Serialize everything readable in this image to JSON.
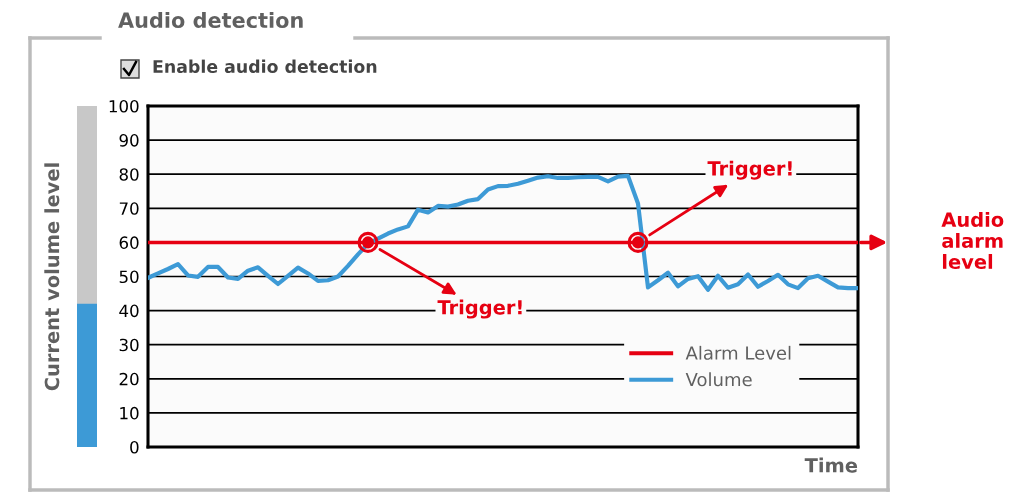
{
  "chart_data": [
    {
      "type": "line",
      "title": "Audio detection",
      "subtitle": "Enable audio detection",
      "xlabel": "Time",
      "categories": [
        null,
        null,
        null,
        null,
        null,
        null,
        null,
        null,
        null,
        null,
        null,
        null,
        null,
        null,
        null,
        null,
        null,
        null,
        null,
        null,
        null,
        null,
        null,
        null,
        null,
        null,
        null,
        null,
        null,
        null,
        null,
        null,
        null,
        null,
        null,
        null,
        null,
        null,
        null,
        null,
        null,
        null,
        null,
        null,
        null,
        null,
        null,
        null,
        null,
        null,
        null,
        null,
        null,
        null,
        null,
        null,
        null,
        null,
        null,
        null,
        null,
        null,
        null,
        null,
        null,
        null,
        null,
        null,
        null,
        null,
        null,
        null
      ],
      "series": [
        {
          "name": "Alarm Level",
          "color": "#e60012",
          "values": [
            60,
            60,
            60,
            60,
            60,
            60,
            60,
            60,
            60,
            60,
            60,
            60,
            60,
            60,
            60,
            60,
            60,
            60,
            60,
            60,
            60,
            60,
            60,
            60,
            60,
            60,
            60,
            60,
            60,
            60,
            60,
            60,
            60,
            60,
            60,
            60,
            60,
            60,
            60,
            60,
            60,
            60,
            60,
            60,
            60,
            60,
            60,
            60,
            60,
            60,
            60,
            60,
            60,
            60,
            60,
            60,
            60,
            60,
            60,
            60,
            60,
            60,
            60,
            60,
            60,
            60,
            60,
            60,
            60,
            60,
            60,
            60
          ]
        },
        {
          "name": "Volume",
          "color": "#3d9ad6",
          "values": [
            49.6,
            50.9,
            52.2,
            53.6,
            50.3,
            49.9,
            52.8,
            52.8,
            49.7,
            49.3,
            51.7,
            52.7,
            50.2,
            47.8,
            50.2,
            52.6,
            50.9,
            48.7,
            48.9,
            50.0,
            53.1,
            56.5,
            59.6,
            61.1,
            62.6,
            63.8,
            64.7,
            69.6,
            68.8,
            70.7,
            70.5,
            71.1,
            72.2,
            72.7,
            75.5,
            76.5,
            76.6,
            77.2,
            78.1,
            79.0,
            79.4,
            78.9,
            78.9,
            79.1,
            79.2,
            79.2,
            77.9,
            79.3,
            79.5,
            71.4,
            46.8,
            48.9,
            51.1,
            47.1,
            49.3,
            50.1,
            46.1,
            50.2,
            46.7,
            47.7,
            50.6,
            47.0,
            48.7,
            50.5,
            47.7,
            46.6,
            49.5,
            50.2,
            48.5,
            46.8,
            46.6,
            46.6
          ]
        }
      ],
      "annotations": [
        "Trigger!",
        "Trigger!",
        "Audio alarm level"
      ],
      "ylim": [
        0,
        100
      ],
      "yticks": [
        0,
        10,
        20,
        30,
        40,
        50,
        60,
        70,
        80,
        90,
        100
      ],
      "grid": "y",
      "legend": "bottom right",
      "marker": "none",
      "line_style": "solid"
    },
    {
      "type": "bar",
      "ylabel": "Current volume level",
      "categories": [
        null
      ],
      "values": [
        42
      ],
      "color": "#3d9ad6",
      "ylim": [
        0,
        100
      ],
      "tick_labels": false
    }
  ]
}
